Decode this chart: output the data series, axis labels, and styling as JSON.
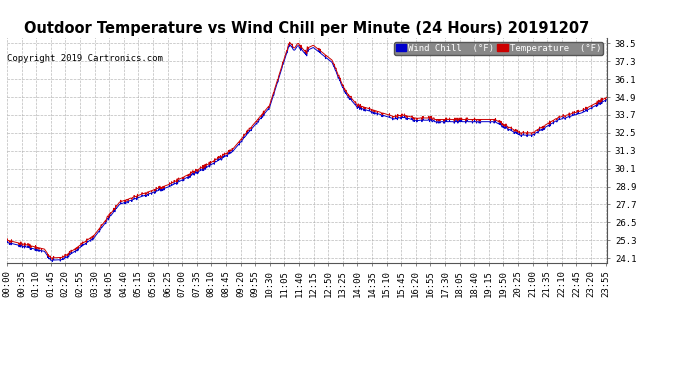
{
  "title": "Outdoor Temperature vs Wind Chill per Minute (24 Hours) 20191207",
  "copyright": "Copyright 2019 Cartronics.com",
  "yticks": [
    24.1,
    25.3,
    26.5,
    27.7,
    28.9,
    30.1,
    31.3,
    32.5,
    33.7,
    34.9,
    36.1,
    37.3,
    38.5
  ],
  "ymin": 23.8,
  "ymax": 38.9,
  "legend_labels": [
    "Wind Chill  (°F)",
    "Temperature  (°F)"
  ],
  "wind_chill_color": "#0000cc",
  "temp_color": "#cc0000",
  "background_color": "#ffffff",
  "plot_bg_color": "#ffffff",
  "grid_color": "#aaaaaa",
  "title_fontsize": 10.5,
  "tick_fontsize": 6.5,
  "copyright_fontsize": 6.5,
  "xtick_interval_min": 35,
  "total_minutes": 1440
}
